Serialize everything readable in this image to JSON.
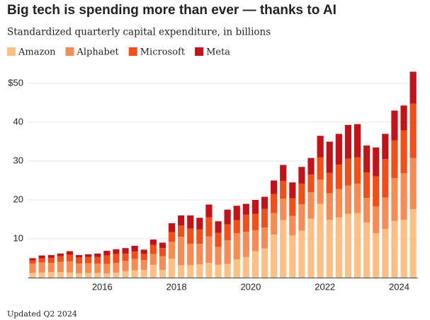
{
  "chart_data": {
    "type": "stacked_bar",
    "title": "Big tech is spending more than ever — thanks to AI",
    "subtitle": "Standardized quarterly capital expenditure, in billions",
    "footnote": "Updated Q2 2024",
    "categories": [
      null,
      null,
      null,
      null,
      null,
      null,
      null,
      null,
      "2016",
      null,
      null,
      null,
      null,
      null,
      null,
      null,
      "2018",
      null,
      null,
      null,
      null,
      null,
      null,
      null,
      "2020",
      null,
      null,
      null,
      null,
      null,
      null,
      null,
      "2022",
      null,
      null,
      null,
      null,
      null,
      null,
      null,
      "2024",
      null
    ],
    "series": [
      {
        "name": "Amazon",
        "color": "#fdbf85",
        "values": [
          1.2,
          1.3,
          1.4,
          1.4,
          1.3,
          1.1,
          1.2,
          1.2,
          1.1,
          1.3,
          1.7,
          1.9,
          2.0,
          3.3,
          2.0,
          4.9,
          3.2,
          3.2,
          3.4,
          3.8,
          3.3,
          3.5,
          4.7,
          5.3,
          6.8,
          7.5,
          11.1,
          14.8,
          10.9,
          12.1,
          15.2,
          19.0,
          14.9,
          15.5,
          16.4,
          16.6,
          14.2,
          11.4,
          12.5,
          14.6,
          14.9,
          17.6
        ]
      },
      {
        "name": "Alphabet",
        "color": "#f58b55",
        "values": [
          2.4,
          2.6,
          2.4,
          2.7,
          2.9,
          2.5,
          2.5,
          2.4,
          2.4,
          2.5,
          2.6,
          2.9,
          2.5,
          2.8,
          3.5,
          4.3,
          7.3,
          5.5,
          5.3,
          6.8,
          4.6,
          6.1,
          6.7,
          6.5,
          5.4,
          5.4,
          5.5,
          5.5,
          5.0,
          6.8,
          6.8,
          6.2,
          6.8,
          7.3,
          7.3,
          7.6,
          6.3,
          6.9,
          8.1,
          11.0,
          12.0,
          13.2
        ]
      },
      {
        "name": "Microsoft",
        "color": "#f04e1a",
        "values": [
          0.8,
          1.1,
          1.3,
          1.4,
          1.7,
          1.6,
          1.6,
          1.7,
          2.2,
          2.3,
          1.9,
          1.9,
          1.6,
          2.3,
          2.1,
          2.5,
          2.9,
          3.9,
          3.7,
          4.9,
          3.6,
          4.1,
          3.4,
          4.4,
          4.2,
          4.8,
          4.9,
          4.6,
          4.5,
          5.3,
          4.5,
          5.8,
          5.3,
          6.3,
          6.9,
          6.8,
          6.6,
          7.8,
          9.9,
          9.7,
          11.0,
          14.0
        ]
      },
      {
        "name": "Meta",
        "color": "#c0141a",
        "values": [
          0.6,
          0.7,
          0.7,
          0.7,
          0.9,
          0.6,
          0.7,
          0.9,
          1.2,
          1.2,
          1.4,
          1.5,
          1.1,
          1.4,
          1.4,
          2.3,
          2.6,
          3.4,
          3.0,
          3.3,
          3.0,
          3.8,
          3.7,
          2.8,
          3.6,
          3.1,
          3.5,
          4.1,
          4.1,
          4.3,
          4.3,
          5.5,
          8.0,
          7.9,
          8.7,
          8.5,
          6.9,
          7.4,
          6.5,
          7.7,
          6.4,
          8.2
        ]
      }
    ],
    "ylim": [
      0,
      53.5
    ],
    "yticks": [
      10,
      20,
      30,
      40,
      {
        "value": 50,
        "label": "$50"
      }
    ],
    "grid": true
  }
}
